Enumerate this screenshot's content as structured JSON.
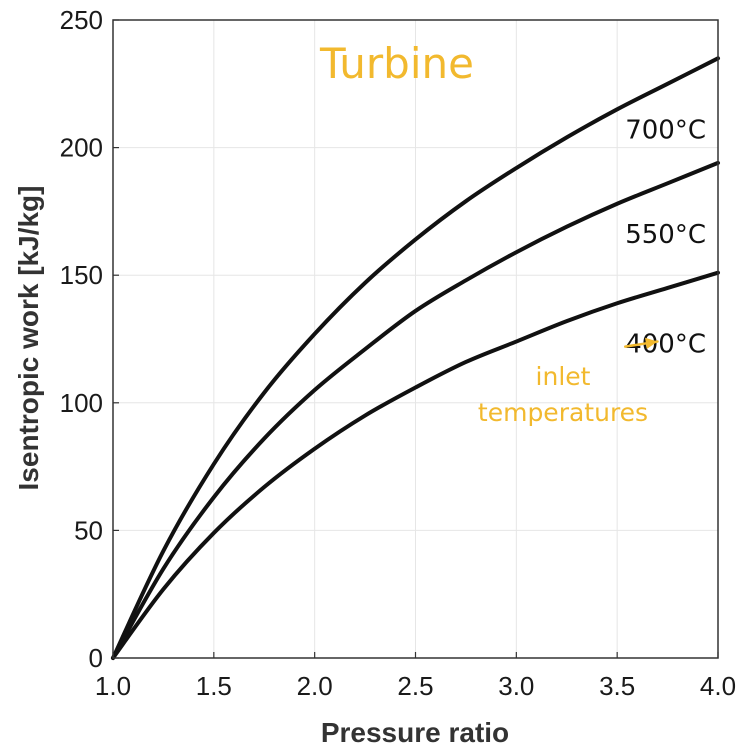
{
  "chart_data": {
    "type": "line",
    "title": "Turbine",
    "xlabel": "Pressure ratio",
    "ylabel": "Isentropic work [kJ/kg]",
    "xlim": [
      1.0,
      4.0
    ],
    "ylim": [
      0,
      250
    ],
    "x_ticks": [
      "1.0",
      "1.5",
      "2.0",
      "2.5",
      "3.0",
      "3.5",
      "4.0"
    ],
    "y_ticks": [
      "0",
      "50",
      "100",
      "150",
      "200",
      "250"
    ],
    "grid": true,
    "x": [
      1.0,
      1.25,
      1.5,
      1.75,
      2.0,
      2.25,
      2.5,
      2.75,
      3.0,
      3.25,
      3.5,
      3.75,
      4.0
    ],
    "series": [
      {
        "name": "700°C",
        "values": [
          0,
          42,
          76,
          104,
          127,
          147,
          164,
          179,
          192,
          204,
          215,
          225,
          235
        ]
      },
      {
        "name": "550°C",
        "values": [
          0,
          35,
          63,
          86,
          105,
          121,
          136,
          148,
          159,
          169,
          178,
          186,
          194
        ]
      },
      {
        "name": "400°C",
        "values": [
          0,
          27,
          49,
          67,
          82,
          95,
          106,
          116,
          124,
          132,
          139,
          145,
          151
        ]
      }
    ],
    "annotation": {
      "lines": [
        "inlet",
        "temperatures"
      ],
      "arrow_from": [
        3.54,
        122
      ],
      "arrow_to": [
        3.7,
        124
      ]
    },
    "colors": {
      "title": "#f2b92e",
      "annotation": "#f2b92e",
      "series": "#111111",
      "grid": "#e6e6e6",
      "axis": "#333333"
    }
  }
}
